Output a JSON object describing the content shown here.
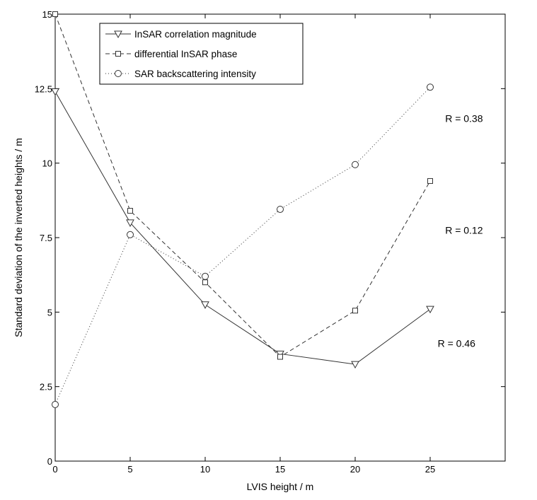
{
  "chart_data": {
    "type": "line",
    "title": "",
    "xlabel": "LVIS height / m",
    "ylabel": "Standard deviation of the inverted heights / m",
    "xlim": [
      0,
      30
    ],
    "ylim": [
      0,
      15
    ],
    "xticks": [
      0,
      5,
      10,
      15,
      20,
      25
    ],
    "xtick_labels": [
      "0",
      "5",
      "10",
      "15",
      "20",
      "25"
    ],
    "yticks": [
      0,
      2.5,
      5,
      7.5,
      10,
      12.5,
      15
    ],
    "ytick_labels": [
      "0",
      "2.5",
      "5",
      "7.5",
      "10",
      "12.5",
      "15"
    ],
    "grid": false,
    "legend_position": "top-left",
    "series": [
      {
        "name": "InSAR correlation magnitude",
        "line_style": "solid",
        "marker": "triangle-down",
        "x": [
          0,
          5,
          10,
          15,
          20,
          25
        ],
        "y": [
          12.4,
          8.0,
          5.25,
          3.6,
          3.25,
          5.1
        ]
      },
      {
        "name": "differential InSAR phase",
        "line_style": "dashed",
        "marker": "square",
        "x": [
          0,
          5,
          10,
          15,
          20,
          25
        ],
        "y": [
          15.0,
          8.4,
          6.0,
          3.5,
          5.05,
          9.4
        ]
      },
      {
        "name": "SAR backscattering intensity",
        "line_style": "dotted",
        "marker": "circle",
        "x": [
          0,
          5,
          10,
          15,
          20,
          25
        ],
        "y": [
          1.9,
          7.6,
          6.2,
          8.45,
          9.95,
          12.55
        ]
      }
    ],
    "annotations": [
      {
        "text": "R = 0.38",
        "x": 26.0,
        "y": 11.5
      },
      {
        "text": "R = 0.12",
        "x": 26.0,
        "y": 7.75
      },
      {
        "text": "R = 0.46",
        "x": 25.5,
        "y": 3.95
      }
    ]
  }
}
